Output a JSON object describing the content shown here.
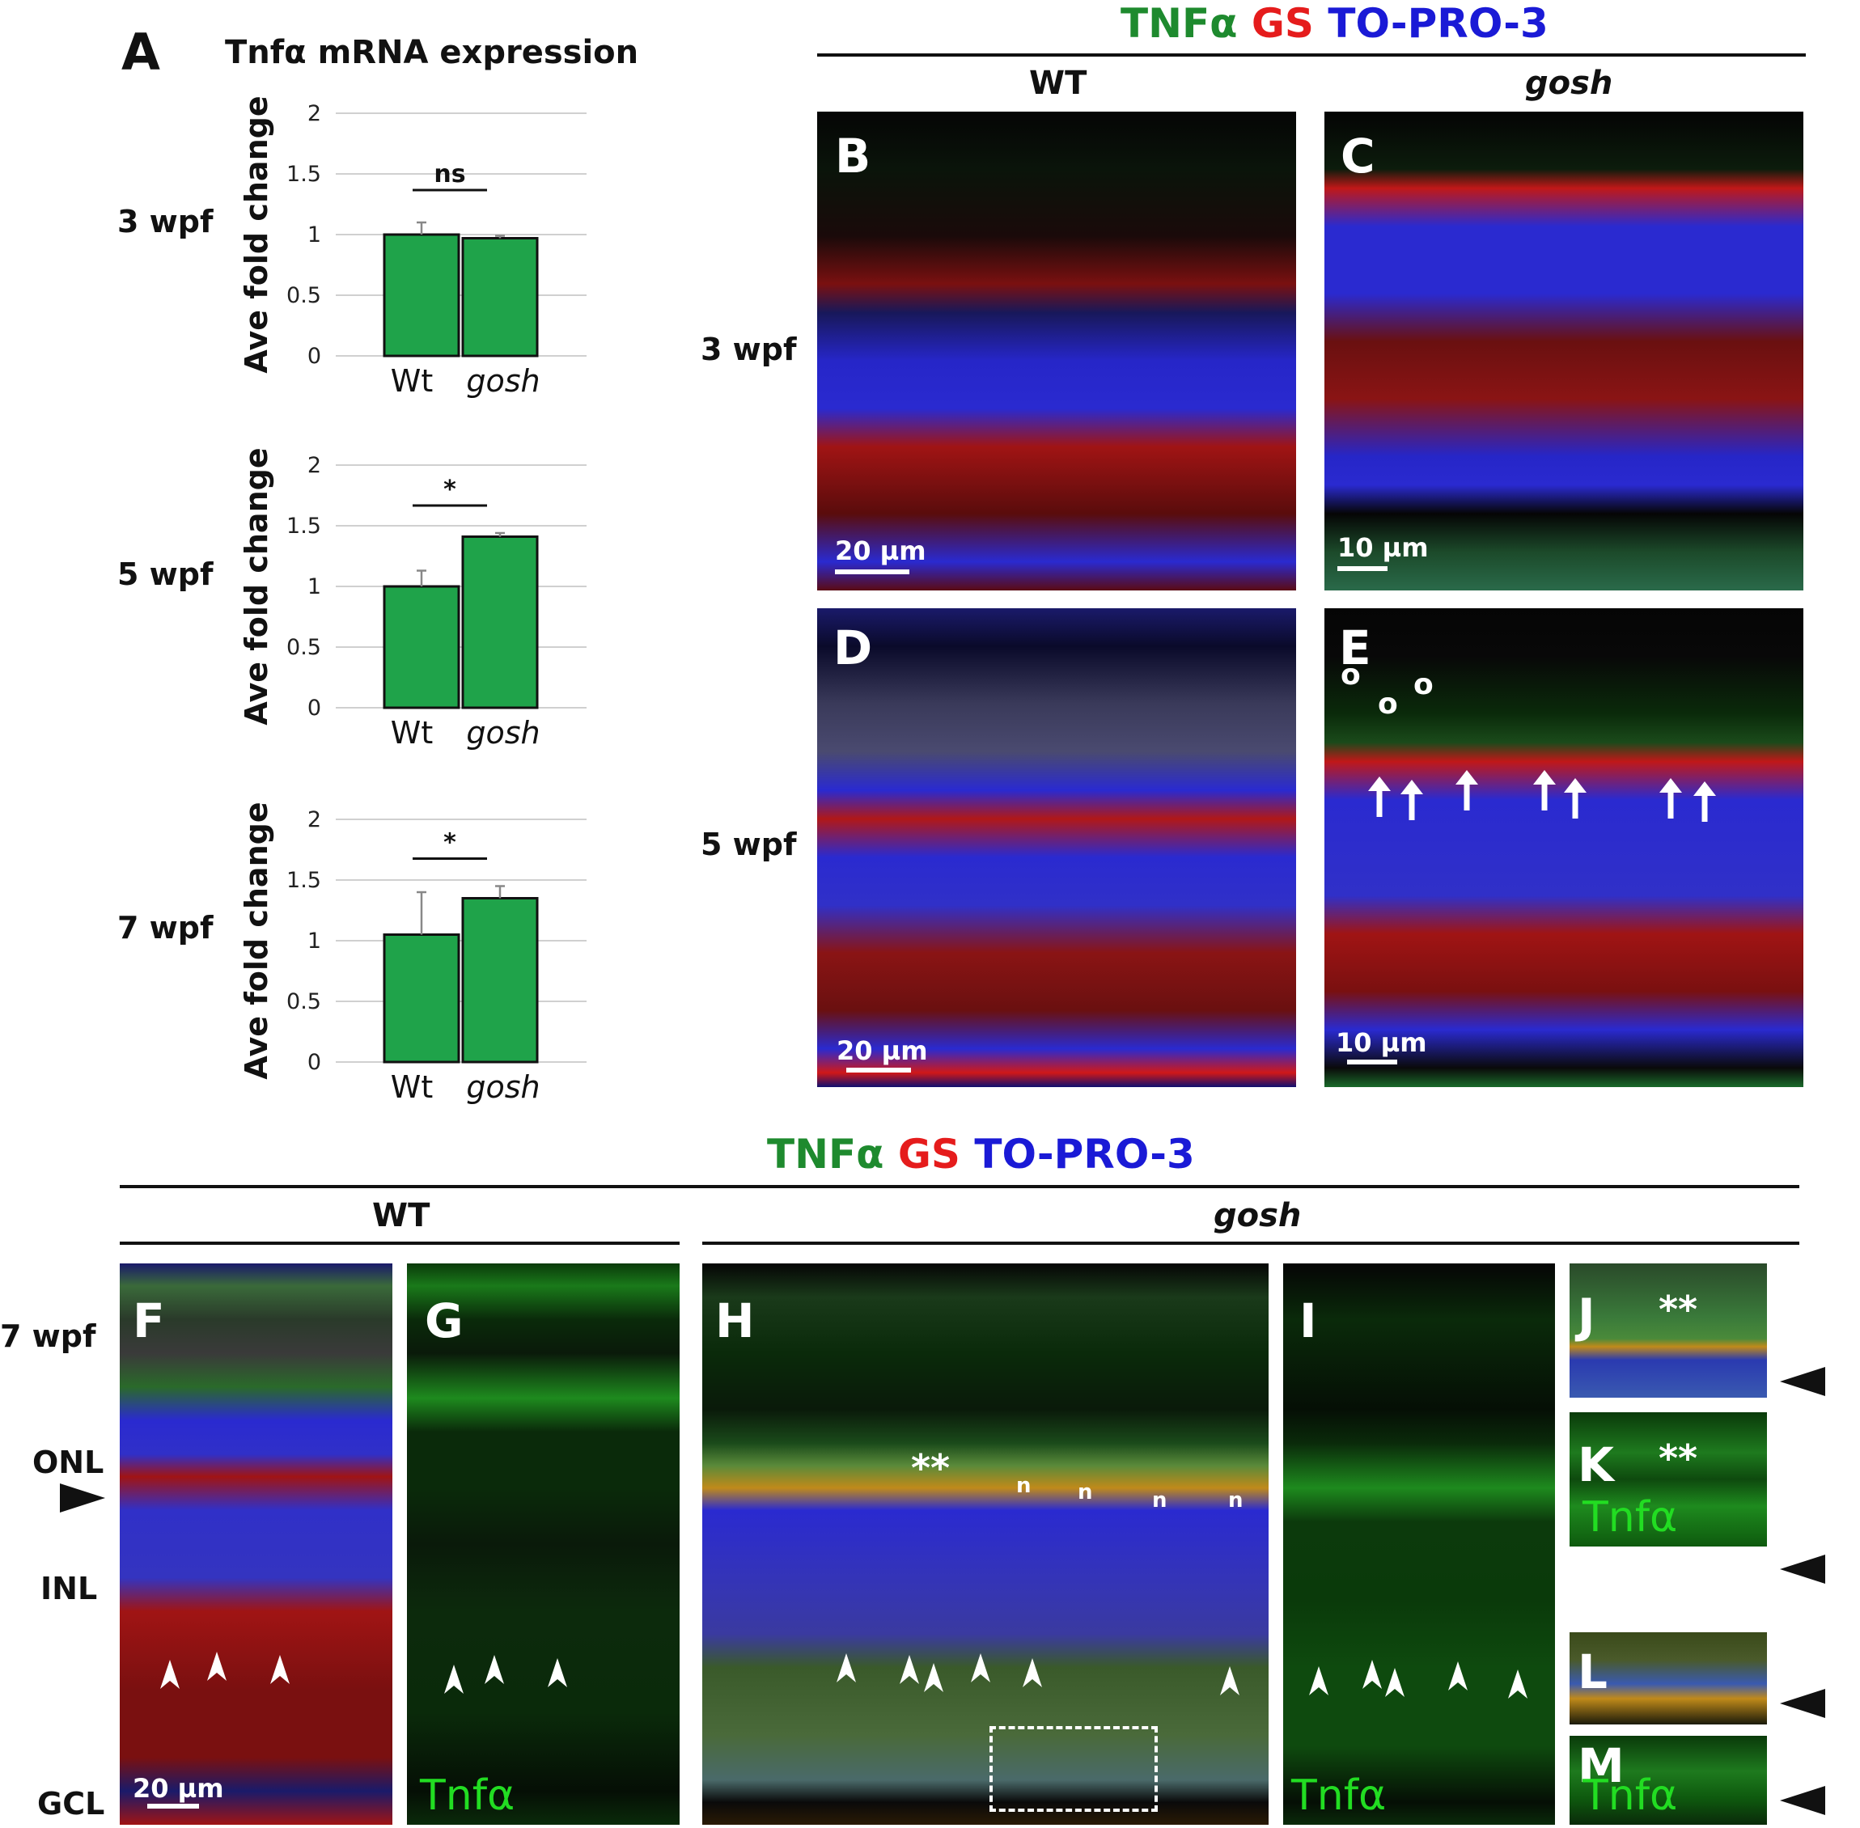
{
  "panel_a": {
    "letter": "A",
    "title": "Tnfα mRNA expression",
    "ylabel": "Ave fold change",
    "bar_color": "#1fa34a"
  },
  "chart_data": [
    {
      "type": "bar",
      "row_label": "3 wpf",
      "categories": [
        "Wt",
        "gosh"
      ],
      "values": [
        1.0,
        0.97
      ],
      "errors": [
        0.1,
        0.02
      ],
      "ylim": [
        0,
        2
      ],
      "yticks": [
        "0",
        "0.5",
        "1",
        "1.5",
        "2"
      ],
      "significance": "ns",
      "ylabel": "Ave fold change"
    },
    {
      "type": "bar",
      "row_label": "5 wpf",
      "categories": [
        "Wt",
        "gosh"
      ],
      "values": [
        1.0,
        1.41
      ],
      "errors": [
        0.13,
        0.03
      ],
      "ylim": [
        0,
        2
      ],
      "yticks": [
        "0",
        "0.5",
        "1",
        "1.5",
        "2"
      ],
      "significance": "*",
      "ylabel": "Ave fold change"
    },
    {
      "type": "bar",
      "row_label": "7 wpf",
      "categories": [
        "Wt",
        "gosh"
      ],
      "values": [
        1.05,
        1.35
      ],
      "errors": [
        0.35,
        0.1
      ],
      "ylim": [
        0,
        2
      ],
      "yticks": [
        "0",
        "0.5",
        "1",
        "1.5",
        "2"
      ],
      "significance": "*",
      "ylabel": "Ave fold change"
    }
  ],
  "top_legend": {
    "tnf": "TNFα",
    "gs": "GS",
    "topro": "TO-PRO-3",
    "tnf_color": "#1e8a2e",
    "gs_color": "#e51c1c",
    "topro_color": "#1a1ad6"
  },
  "top_headers": {
    "wt": "WT",
    "gosh": "gosh"
  },
  "top_rows": {
    "row1": "3 wpf",
    "row2": "5 wpf"
  },
  "top_panels": {
    "b": {
      "letter": "B",
      "scale": "20 µm"
    },
    "c": {
      "letter": "C",
      "scale": "10 µm"
    },
    "d": {
      "letter": "D",
      "scale": "20 µm"
    },
    "e": {
      "letter": "E",
      "scale": "10 µm",
      "markers": [
        "o",
        "o",
        "o"
      ]
    }
  },
  "bottom_legend": {
    "tnf": "TNFα",
    "gs": "GS",
    "topro": "TO-PRO-3"
  },
  "bottom_headers": {
    "wt": "WT",
    "gosh": "gosh"
  },
  "bottom_labels": {
    "age": "7 wpf",
    "onl": "ONL",
    "inl": "INL",
    "gcl": "GCL"
  },
  "bottom_panels": {
    "f": {
      "letter": "F",
      "scale": "20 µm"
    },
    "g": {
      "letter": "G",
      "channel": "Tnfα"
    },
    "h": {
      "letter": "H",
      "stars": "**",
      "n": "n"
    },
    "i": {
      "letter": "I",
      "channel": "Tnfα"
    },
    "j": {
      "letter": "J",
      "stars": "**"
    },
    "k": {
      "letter": "K",
      "stars": "**",
      "channel": "Tnfα"
    },
    "l": {
      "letter": "L"
    },
    "m": {
      "letter": "M",
      "channel": "Tnfα"
    }
  }
}
